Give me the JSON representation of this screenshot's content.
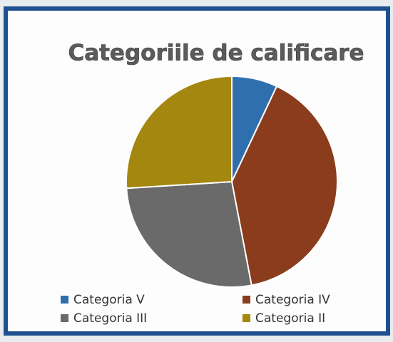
{
  "chart_data": {
    "type": "pie",
    "title": "Categoriile de calificare",
    "categories": [
      "Categoria V",
      "Categoria IV",
      "Categoria III",
      "Categoria II"
    ],
    "values": [
      7,
      40,
      27,
      26
    ],
    "colors": [
      "#2f6fae",
      "#8a3c1c",
      "#6a6a6a",
      "#a4870f"
    ],
    "legend": "bottom"
  }
}
